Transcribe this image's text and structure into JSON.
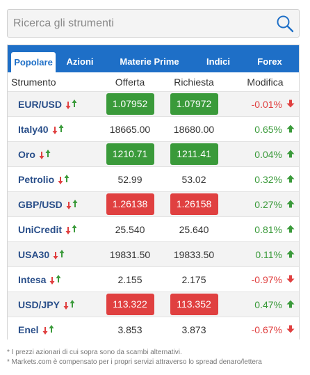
{
  "search": {
    "placeholder": "Ricerca gli strumenti"
  },
  "tabs": [
    {
      "label": "Popolare",
      "active": true
    },
    {
      "label": "Azioni",
      "active": false
    },
    {
      "label": "Materie Prime",
      "active": false
    },
    {
      "label": "Indici",
      "active": false
    },
    {
      "label": "Forex",
      "active": false
    }
  ],
  "table": {
    "headers": {
      "name": "Strumento",
      "bid": "Offerta",
      "ask": "Richiesta",
      "change": "Modifica"
    },
    "rows": [
      {
        "name": "EUR/USD",
        "bid": "1.07952",
        "ask": "1.07972",
        "change": "-0.01%",
        "direction": "down",
        "highlight": "green"
      },
      {
        "name": "Italy40",
        "bid": "18665.00",
        "ask": "18680.00",
        "change": "0.65%",
        "direction": "up",
        "highlight": "none"
      },
      {
        "name": "Oro",
        "bid": "1210.71",
        "ask": "1211.41",
        "change": "0.04%",
        "direction": "up",
        "highlight": "green"
      },
      {
        "name": "Petrolio",
        "bid": "52.99",
        "ask": "53.02",
        "change": "0.32%",
        "direction": "up",
        "highlight": "none"
      },
      {
        "name": "GBP/USD",
        "bid": "1.26138",
        "ask": "1.26158",
        "change": "0.27%",
        "direction": "up",
        "highlight": "red"
      },
      {
        "name": "UniCredit",
        "bid": "25.540",
        "ask": "25.640",
        "change": "0.81%",
        "direction": "up",
        "highlight": "none"
      },
      {
        "name": "USA30",
        "bid": "19831.50",
        "ask": "19833.50",
        "change": "0.11%",
        "direction": "up",
        "highlight": "none"
      },
      {
        "name": "Intesa",
        "bid": "2.155",
        "ask": "2.175",
        "change": "-0.97%",
        "direction": "down",
        "highlight": "none"
      },
      {
        "name": "USD/JPY",
        "bid": "113.322",
        "ask": "113.352",
        "change": "0.47%",
        "direction": "up",
        "highlight": "red"
      },
      {
        "name": "Enel",
        "bid": "3.853",
        "ask": "3.873",
        "change": "-0.67%",
        "direction": "down",
        "highlight": "none"
      }
    ]
  },
  "footnotes": [
    "* I prezzi azionari di cui sopra sono da scambi alternativi.",
    "* Markets.com è compensato per i propri servizi attraverso lo spread denaro/lettera"
  ],
  "colors": {
    "accent": "#1e6fc7",
    "up": "#3a9a3a",
    "down": "#e04040"
  },
  "icons": {
    "search": "search-icon",
    "trade": "buy-sell-arrows-icon",
    "up": "arrow-up-icon",
    "down": "arrow-down-icon"
  }
}
